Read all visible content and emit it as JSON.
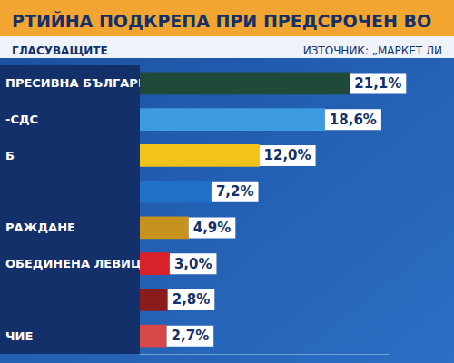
{
  "chart_data": {
    "type": "bar",
    "orientation": "horizontal",
    "title": "РТИЙНА ПОДКРЕПА ПРИ ПРЕДСРОЧЕН ВО",
    "subtitle": "ГЛАСУВАЩИТЕ",
    "annotations": [
      "ИЗТОЧНИК: „МАРКЕТ ЛИ"
    ],
    "categories": [
      "ПРЕСИВНА БЪЛГАРИЯ",
      "-СДС",
      "Б",
      null,
      "РАЖДАНЕ",
      "ОБЕДИНЕНА ЛЕВИЦА",
      null,
      "ЧИЕ"
    ],
    "values": [
      21.1,
      18.6,
      12.0,
      7.2,
      4.9,
      3.0,
      2.8,
      2.7
    ],
    "value_labels": [
      "21,1%",
      "18,6%",
      "12,0%",
      "7,2%",
      "4,9%",
      "3,0%",
      "2,8%",
      "2,7%"
    ],
    "colors": [
      "#1f4a3a",
      "#3d9be0",
      "#f2c31b",
      "#2070c8",
      "#c8921f",
      "#d9212a",
      "#8a1c1c",
      "#d94848"
    ],
    "xlim": [
      0,
      25
    ],
    "data_labels": true,
    "tick_labels": "y",
    "grid": false
  }
}
